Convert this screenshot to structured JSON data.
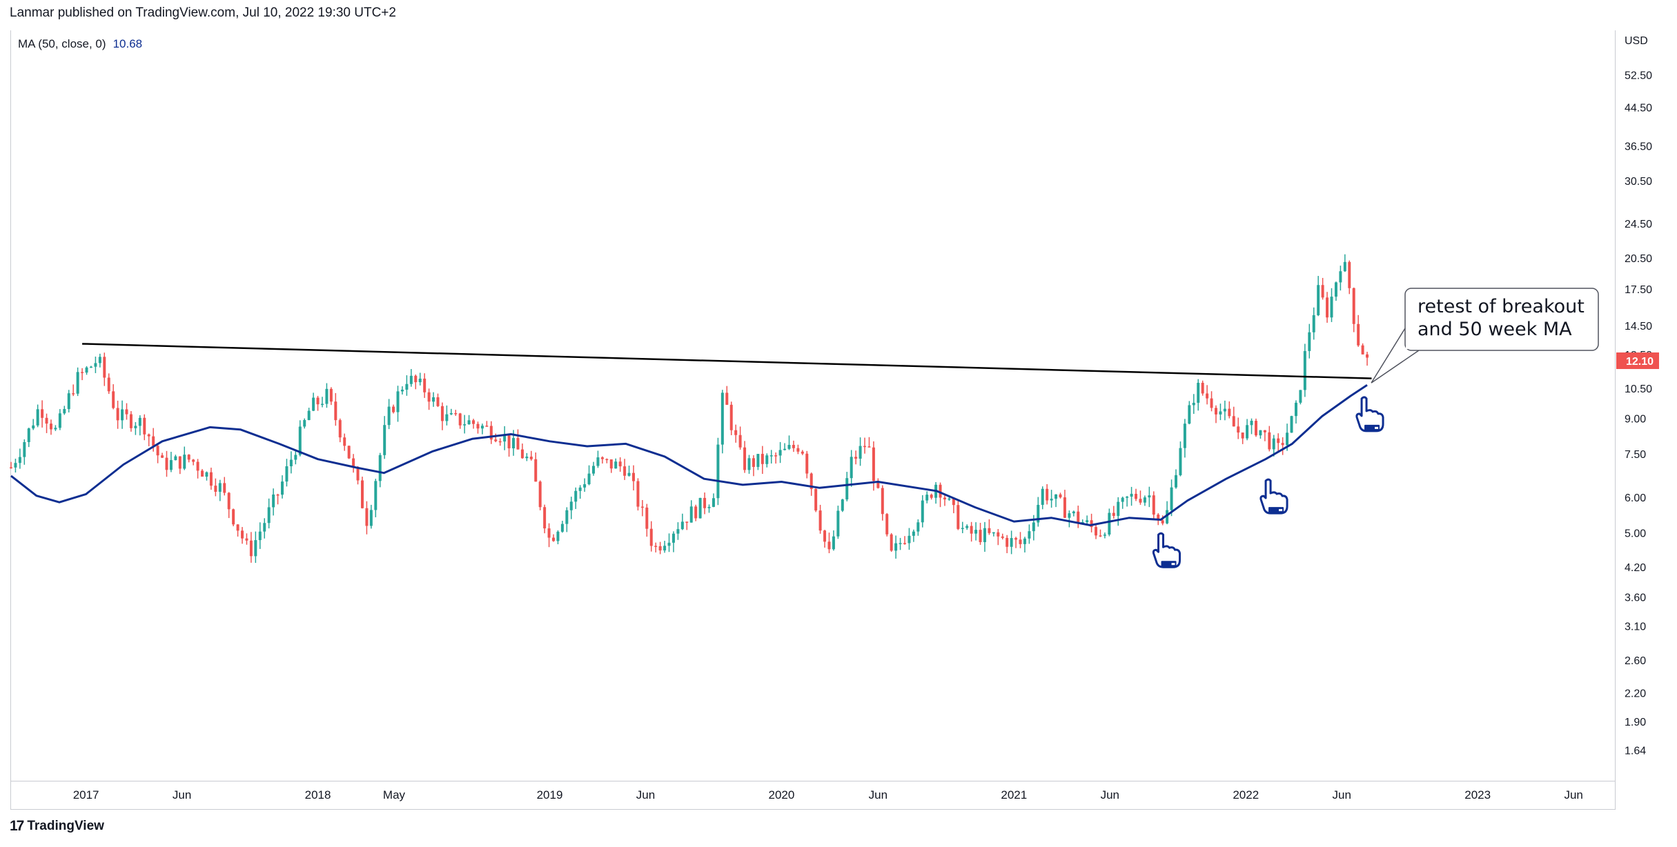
{
  "header": {
    "published": "Lanmar published on TradingView.com, Jul 10, 2022 19:30 UTC+2"
  },
  "legend": {
    "label": "MA (50, close, 0)",
    "value": "10.68"
  },
  "footer": {
    "brand": "TradingView",
    "logo_text": "17"
  },
  "annotation": {
    "line1": "retest of breakout",
    "line2": "and 50 week MA"
  },
  "icons": [
    "pointing-hand-icon",
    "pointing-hand-icon",
    "pointing-hand-icon"
  ],
  "colors": {
    "up": "#26a69a",
    "down": "#ef5350",
    "ma": "#0d2e91",
    "trendline": "#000000",
    "price_tag": "#ef5350"
  },
  "chart_data": {
    "type": "candlestick",
    "scale": "log",
    "currency_label": "USD",
    "price_ticks": [
      "52.50",
      "44.50",
      "36.50",
      "30.50",
      "24.50",
      "20.50",
      "17.50",
      "14.50",
      "12.50",
      "10.50",
      "9.00",
      "7.50",
      "6.00",
      "5.00",
      "4.20",
      "3.60",
      "3.10",
      "2.60",
      "2.20",
      "1.90",
      "1.64"
    ],
    "ylim": [
      1.4,
      66
    ],
    "last_price": "12.10",
    "time_ticks": [
      {
        "label": "2017",
        "date": "2017-01-01"
      },
      {
        "label": "Jun",
        "date": "2017-06-01"
      },
      {
        "label": "2018",
        "date": "2018-01-01"
      },
      {
        "label": "May",
        "date": "2018-05-01"
      },
      {
        "label": "2019",
        "date": "2019-01-01"
      },
      {
        "label": "Jun",
        "date": "2019-06-01"
      },
      {
        "label": "2020",
        "date": "2020-01-01"
      },
      {
        "label": "Jun",
        "date": "2020-06-01"
      },
      {
        "label": "2021",
        "date": "2021-01-01"
      },
      {
        "label": "Jun",
        "date": "2021-06-01"
      },
      {
        "label": "2022",
        "date": "2022-01-01"
      },
      {
        "label": "Jun",
        "date": "2022-06-01"
      },
      {
        "label": "2023",
        "date": "2023-01-01"
      },
      {
        "label": "Jun",
        "date": "2023-06-01"
      }
    ],
    "xlim": [
      "2016-09-05",
      "2023-08-05"
    ],
    "trendline": [
      {
        "date": "2016-12-26",
        "price": 13.2
      },
      {
        "date": "2022-07-18",
        "price": 11.05
      }
    ],
    "ma50_label": "MA (50, close, 0)",
    "ma50": [
      {
        "date": "2016-09-05",
        "price": 6.7
      },
      {
        "date": "2016-10-15",
        "price": 6.05
      },
      {
        "date": "2016-11-20",
        "price": 5.85
      },
      {
        "date": "2017-01-01",
        "price": 6.1
      },
      {
        "date": "2017-03-01",
        "price": 7.1
      },
      {
        "date": "2017-05-01",
        "price": 8.0
      },
      {
        "date": "2017-07-15",
        "price": 8.6
      },
      {
        "date": "2017-09-01",
        "price": 8.5
      },
      {
        "date": "2017-11-01",
        "price": 7.9
      },
      {
        "date": "2018-01-01",
        "price": 7.3
      },
      {
        "date": "2018-03-01",
        "price": 7.0
      },
      {
        "date": "2018-04-15",
        "price": 6.8
      },
      {
        "date": "2018-07-01",
        "price": 7.6
      },
      {
        "date": "2018-09-01",
        "price": 8.1
      },
      {
        "date": "2018-11-01",
        "price": 8.3
      },
      {
        "date": "2019-01-01",
        "price": 8.0
      },
      {
        "date": "2019-03-01",
        "price": 7.8
      },
      {
        "date": "2019-05-01",
        "price": 7.9
      },
      {
        "date": "2019-07-01",
        "price": 7.4
      },
      {
        "date": "2019-09-01",
        "price": 6.6
      },
      {
        "date": "2019-11-01",
        "price": 6.4
      },
      {
        "date": "2020-01-01",
        "price": 6.5
      },
      {
        "date": "2020-03-01",
        "price": 6.3
      },
      {
        "date": "2020-06-01",
        "price": 6.5
      },
      {
        "date": "2020-09-01",
        "price": 6.2
      },
      {
        "date": "2020-11-01",
        "price": 5.7
      },
      {
        "date": "2021-01-01",
        "price": 5.3
      },
      {
        "date": "2021-03-01",
        "price": 5.4
      },
      {
        "date": "2021-05-01",
        "price": 5.2
      },
      {
        "date": "2021-07-01",
        "price": 5.4
      },
      {
        "date": "2021-08-20",
        "price": 5.35
      },
      {
        "date": "2021-10-01",
        "price": 5.9
      },
      {
        "date": "2021-12-01",
        "price": 6.6
      },
      {
        "date": "2022-02-01",
        "price": 7.3
      },
      {
        "date": "2022-03-15",
        "price": 7.9
      },
      {
        "date": "2022-05-01",
        "price": 9.1
      },
      {
        "date": "2022-06-15",
        "price": 10.1
      },
      {
        "date": "2022-07-11",
        "price": 10.68
      }
    ],
    "price_path": [
      {
        "date": "2016-09-05",
        "price": 7.0
      },
      {
        "date": "2016-10-01",
        "price": 8.3
      },
      {
        "date": "2016-10-20",
        "price": 9.6
      },
      {
        "date": "2016-11-15",
        "price": 8.4
      },
      {
        "date": "2016-12-15",
        "price": 10.9
      },
      {
        "date": "2017-01-20",
        "price": 12.2
      },
      {
        "date": "2017-02-20",
        "price": 9.1
      },
      {
        "date": "2017-04-01",
        "price": 8.8
      },
      {
        "date": "2017-05-01",
        "price": 7.1
      },
      {
        "date": "2017-06-15",
        "price": 7.3
      },
      {
        "date": "2017-08-01",
        "price": 6.3
      },
      {
        "date": "2017-09-15",
        "price": 4.5
      },
      {
        "date": "2017-11-01",
        "price": 6.2
      },
      {
        "date": "2017-12-20",
        "price": 9.5
      },
      {
        "date": "2018-01-15",
        "price": 10.1
      },
      {
        "date": "2018-02-15",
        "price": 7.8
      },
      {
        "date": "2018-03-20",
        "price": 5.3
      },
      {
        "date": "2018-04-20",
        "price": 9.0
      },
      {
        "date": "2018-05-20",
        "price": 11.1
      },
      {
        "date": "2018-06-20",
        "price": 10.4
      },
      {
        "date": "2018-07-20",
        "price": 9.0
      },
      {
        "date": "2018-09-01",
        "price": 8.8
      },
      {
        "date": "2018-10-15",
        "price": 8.3
      },
      {
        "date": "2018-12-01",
        "price": 7.2
      },
      {
        "date": "2019-01-01",
        "price": 4.8
      },
      {
        "date": "2019-02-01",
        "price": 5.8
      },
      {
        "date": "2019-03-15",
        "price": 7.2
      },
      {
        "date": "2019-05-01",
        "price": 7.0
      },
      {
        "date": "2019-06-15",
        "price": 4.6
      },
      {
        "date": "2019-08-01",
        "price": 5.4
      },
      {
        "date": "2019-09-15",
        "price": 6.0
      },
      {
        "date": "2019-10-01",
        "price": 10.2
      },
      {
        "date": "2019-11-01",
        "price": 7.1
      },
      {
        "date": "2019-12-15",
        "price": 7.3
      },
      {
        "date": "2020-02-01",
        "price": 7.9
      },
      {
        "date": "2020-03-15",
        "price": 4.4
      },
      {
        "date": "2020-04-20",
        "price": 7.2
      },
      {
        "date": "2020-05-15",
        "price": 8.0
      },
      {
        "date": "2020-06-20",
        "price": 4.4
      },
      {
        "date": "2020-08-01",
        "price": 5.4
      },
      {
        "date": "2020-09-01",
        "price": 6.5
      },
      {
        "date": "2020-10-15",
        "price": 5.0
      },
      {
        "date": "2020-12-01",
        "price": 4.9
      },
      {
        "date": "2021-01-15",
        "price": 4.7
      },
      {
        "date": "2021-02-15",
        "price": 6.2
      },
      {
        "date": "2021-04-01",
        "price": 5.5
      },
      {
        "date": "2021-05-15",
        "price": 5.0
      },
      {
        "date": "2021-07-01",
        "price": 6.0
      },
      {
        "date": "2021-08-01",
        "price": 6.1
      },
      {
        "date": "2021-08-25",
        "price": 5.1
      },
      {
        "date": "2021-09-20",
        "price": 7.9
      },
      {
        "date": "2021-10-15",
        "price": 10.6
      },
      {
        "date": "2021-11-15",
        "price": 9.6
      },
      {
        "date": "2021-12-20",
        "price": 8.4
      },
      {
        "date": "2022-01-20",
        "price": 8.6
      },
      {
        "date": "2022-02-20",
        "price": 7.6
      },
      {
        "date": "2022-03-20",
        "price": 9.2
      },
      {
        "date": "2022-04-10",
        "price": 14.0
      },
      {
        "date": "2022-04-25",
        "price": 17.2
      },
      {
        "date": "2022-05-10",
        "price": 15.5
      },
      {
        "date": "2022-05-31",
        "price": 20.3
      },
      {
        "date": "2022-06-10",
        "price": 18.8
      },
      {
        "date": "2022-06-25",
        "price": 13.6
      },
      {
        "date": "2022-07-11",
        "price": 12.1
      }
    ],
    "pointer_marks": [
      {
        "date": "2021-08-25",
        "price": 4.55
      },
      {
        "date": "2022-02-10",
        "price": 6.0
      },
      {
        "date": "2022-07-11",
        "price": 9.15
      }
    ]
  }
}
